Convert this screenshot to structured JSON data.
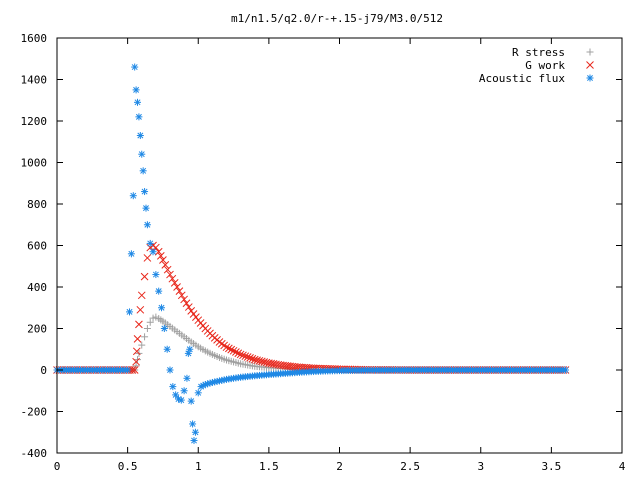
{
  "chart_data": {
    "type": "scatter",
    "title": "m1/n1.5/q2.0/r-+.15-j79/M3.0/512",
    "xlabel": "",
    "ylabel": "",
    "xlim": [
      0,
      4
    ],
    "ylim": [
      -400,
      1600
    ],
    "xticks": [
      0,
      0.5,
      1,
      1.5,
      2,
      2.5,
      3,
      3.5,
      4
    ],
    "xtick_labels": [
      "0",
      "0.5",
      "1",
      "1.5",
      "2",
      "2.5",
      "3",
      "3.5",
      "4"
    ],
    "yticks": [
      -400,
      -200,
      0,
      200,
      400,
      600,
      800,
      1000,
      1200,
      1400,
      1600
    ],
    "ytick_labels": [
      "-400",
      "-200",
      "0",
      "200",
      "400",
      "600",
      "800",
      "1000",
      "1200",
      "1400",
      "1600"
    ],
    "grid": false,
    "legend_position": "top-right",
    "series": [
      {
        "name": "R stress",
        "marker": "plus",
        "color": "#a0a0a0",
        "points": [
          [
            0.0,
            0
          ],
          [
            0.1,
            0
          ],
          [
            0.2,
            0
          ],
          [
            0.3,
            0
          ],
          [
            0.4,
            0
          ],
          [
            0.5,
            0
          ],
          [
            0.55,
            0
          ],
          [
            0.56,
            20
          ],
          [
            0.57,
            50
          ],
          [
            0.58,
            80
          ],
          [
            0.6,
            120
          ],
          [
            0.62,
            160
          ],
          [
            0.64,
            200
          ],
          [
            0.66,
            230
          ],
          [
            0.68,
            250
          ],
          [
            0.7,
            255
          ],
          [
            0.72,
            248
          ],
          [
            0.75,
            235
          ],
          [
            0.8,
            210
          ],
          [
            0.85,
            185
          ],
          [
            0.9,
            160
          ],
          [
            0.95,
            135
          ],
          [
            1.0,
            112
          ],
          [
            1.05,
            92
          ],
          [
            1.1,
            75
          ],
          [
            1.15,
            60
          ],
          [
            1.2,
            48
          ],
          [
            1.3,
            30
          ],
          [
            1.4,
            18
          ],
          [
            1.5,
            11
          ],
          [
            1.6,
            7
          ],
          [
            1.7,
            4
          ],
          [
            1.8,
            2
          ],
          [
            1.9,
            1
          ],
          [
            2.0,
            0
          ],
          [
            2.2,
            0
          ],
          [
            2.5,
            0
          ],
          [
            2.8,
            0
          ],
          [
            3.1,
            0
          ],
          [
            3.4,
            0
          ],
          [
            3.6,
            0
          ]
        ]
      },
      {
        "name": "G work",
        "marker": "cross",
        "color": "#e8261a",
        "points": [
          [
            0.0,
            0
          ],
          [
            0.1,
            0
          ],
          [
            0.2,
            0
          ],
          [
            0.3,
            0
          ],
          [
            0.4,
            0
          ],
          [
            0.5,
            0
          ],
          [
            0.55,
            0
          ],
          [
            0.56,
            40
          ],
          [
            0.565,
            90
          ],
          [
            0.57,
            150
          ],
          [
            0.58,
            220
          ],
          [
            0.59,
            290
          ],
          [
            0.6,
            360
          ],
          [
            0.62,
            450
          ],
          [
            0.64,
            540
          ],
          [
            0.66,
            590
          ],
          [
            0.68,
            600
          ],
          [
            0.7,
            590
          ],
          [
            0.72,
            570
          ],
          [
            0.75,
            530
          ],
          [
            0.8,
            460
          ],
          [
            0.85,
            400
          ],
          [
            0.9,
            340
          ],
          [
            0.95,
            285
          ],
          [
            1.0,
            240
          ],
          [
            1.05,
            200
          ],
          [
            1.1,
            165
          ],
          [
            1.15,
            135
          ],
          [
            1.2,
            110
          ],
          [
            1.3,
            75
          ],
          [
            1.4,
            50
          ],
          [
            1.5,
            33
          ],
          [
            1.6,
            22
          ],
          [
            1.7,
            14
          ],
          [
            1.8,
            9
          ],
          [
            1.9,
            6
          ],
          [
            2.0,
            4
          ],
          [
            2.2,
            1
          ],
          [
            2.5,
            0
          ],
          [
            2.8,
            0
          ],
          [
            3.1,
            0
          ],
          [
            3.4,
            0
          ],
          [
            3.6,
            0
          ]
        ]
      },
      {
        "name": "Acoustic flux",
        "marker": "star",
        "color": "#1e88e5",
        "points": [
          [
            0.0,
            0
          ],
          [
            0.1,
            0
          ],
          [
            0.2,
            0
          ],
          [
            0.3,
            0
          ],
          [
            0.4,
            0
          ],
          [
            0.5,
            0
          ],
          [
            0.54,
            840
          ],
          [
            0.55,
            1460
          ],
          [
            0.56,
            1350
          ],
          [
            0.57,
            1290
          ],
          [
            0.58,
            1220
          ],
          [
            0.59,
            1130
          ],
          [
            0.6,
            1040
          ],
          [
            0.61,
            960
          ],
          [
            0.62,
            860
          ],
          [
            0.63,
            780
          ],
          [
            0.64,
            700
          ],
          [
            0.66,
            610
          ],
          [
            0.68,
            570
          ],
          [
            0.7,
            460
          ],
          [
            0.72,
            380
          ],
          [
            0.74,
            300
          ],
          [
            0.76,
            200
          ],
          [
            0.78,
            100
          ],
          [
            0.8,
            0
          ],
          [
            0.82,
            -80
          ],
          [
            0.84,
            -120
          ],
          [
            0.86,
            -140
          ],
          [
            0.88,
            -145
          ],
          [
            0.9,
            -100
          ],
          [
            0.92,
            -40
          ],
          [
            0.93,
            80
          ],
          [
            0.94,
            100
          ],
          [
            0.95,
            -150
          ],
          [
            0.96,
            -260
          ],
          [
            0.97,
            -340
          ],
          [
            0.98,
            -300
          ],
          [
            1.0,
            -110
          ],
          [
            1.02,
            -80
          ],
          [
            1.05,
            -70
          ],
          [
            1.1,
            -60
          ],
          [
            1.2,
            -45
          ],
          [
            1.3,
            -35
          ],
          [
            1.4,
            -28
          ],
          [
            1.5,
            -22
          ],
          [
            1.6,
            -17
          ],
          [
            1.7,
            -12
          ],
          [
            1.8,
            -8
          ],
          [
            1.9,
            -5
          ],
          [
            2.0,
            -3
          ],
          [
            2.2,
            -1
          ],
          [
            2.5,
            0
          ],
          [
            2.8,
            0
          ],
          [
            3.1,
            0
          ],
          [
            3.4,
            0
          ],
          [
            3.6,
            0
          ]
        ]
      }
    ]
  }
}
